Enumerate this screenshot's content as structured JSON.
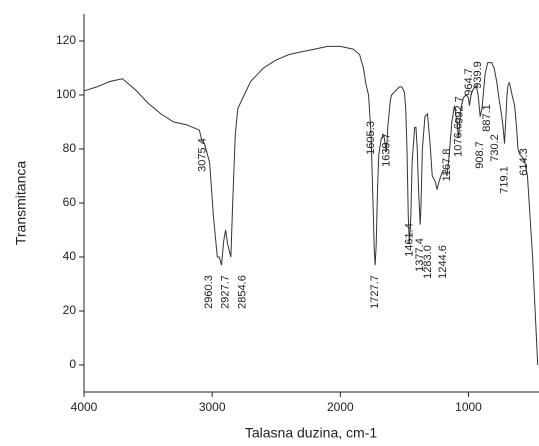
{
  "chart_data": {
    "type": "line",
    "x_label": "Talasna duzina, cm-1",
    "y_label": "Transmitanca",
    "xlim": [
      4000,
      450
    ],
    "xticks": [
      4000,
      3000,
      2000,
      1000
    ],
    "ylim": [
      -10,
      130
    ],
    "yticks": [
      0,
      20,
      40,
      60,
      80,
      100,
      120
    ],
    "grid": false,
    "x": [
      4000,
      3900,
      3800,
      3750,
      3700,
      3650,
      3600,
      3500,
      3400,
      3300,
      3200,
      3150,
      3100,
      3080,
      3060,
      3020,
      2990,
      2960,
      2945,
      2927,
      2910,
      2895,
      2880,
      2865,
      2854,
      2840,
      2820,
      2800,
      2750,
      2700,
      2600,
      2500,
      2400,
      2300,
      2200,
      2100,
      2000,
      1950,
      1900,
      1850,
      1820,
      1800,
      1780,
      1760,
      1745,
      1735,
      1728,
      1720,
      1710,
      1700,
      1680,
      1660,
      1645,
      1640,
      1630,
      1610,
      1600,
      1580,
      1560,
      1540,
      1520,
      1500,
      1490,
      1480,
      1470,
      1461,
      1450,
      1440,
      1420,
      1410,
      1400,
      1390,
      1377,
      1370,
      1360,
      1340,
      1320,
      1300,
      1283,
      1260,
      1245,
      1230,
      1200,
      1180,
      1168,
      1150,
      1130,
      1110,
      1090,
      1077,
      1060,
      1040,
      1020,
      1000,
      993,
      980,
      965,
      950,
      940,
      925,
      909,
      895,
      887,
      870,
      850,
      820,
      800,
      780,
      760,
      740,
      730,
      719,
      710,
      700,
      690,
      680,
      660,
      640,
      625,
      614,
      600,
      580,
      560,
      540,
      520,
      500,
      480,
      460
    ],
    "series": [
      {
        "color": "#333333",
        "values": [
          101.5,
          103,
          105,
          105.5,
          106,
          104,
          102,
          97,
          93,
          90,
          89,
          88,
          87,
          83,
          82,
          75,
          55,
          40,
          40,
          37,
          46,
          50,
          45,
          42,
          40,
          60,
          85,
          95,
          100,
          105,
          110,
          113,
          115,
          116,
          117,
          118,
          118,
          117.5,
          117,
          115,
          110,
          104,
          100,
          85,
          60,
          42,
          37,
          45,
          65,
          78,
          84,
          85,
          80,
          79,
          88,
          98,
          100,
          101,
          102,
          103,
          103,
          101,
          95,
          80,
          55,
          45,
          55,
          75,
          88,
          88,
          80,
          65,
          52,
          60,
          80,
          92,
          93,
          82,
          70,
          68,
          65,
          68,
          72,
          72,
          70,
          78,
          90,
          96,
          90,
          84,
          95,
          99,
          100,
          99,
          96,
          100,
          102,
          103,
          103.5,
          100,
          92,
          95,
          99,
          108,
          112,
          112,
          110,
          105,
          98,
          92,
          88,
          82,
          90,
          100,
          104,
          104.5,
          100,
          96,
          88,
          80,
          78,
          77,
          75,
          70,
          55,
          40,
          20,
          0
        ]
      }
    ],
    "annotations": [
      "3075.4",
      "2960.3",
      "2927.7",
      "2854.6",
      "1605.3",
      "1639.7",
      "1727.7",
      "1461.4",
      "1377.4",
      "1283.0",
      "1244.6",
      "1167.8",
      "1076.6",
      "992.7",
      "964.7",
      "939.9",
      "908.7",
      "887.1",
      "730.2",
      "719.1",
      "614.3"
    ]
  }
}
